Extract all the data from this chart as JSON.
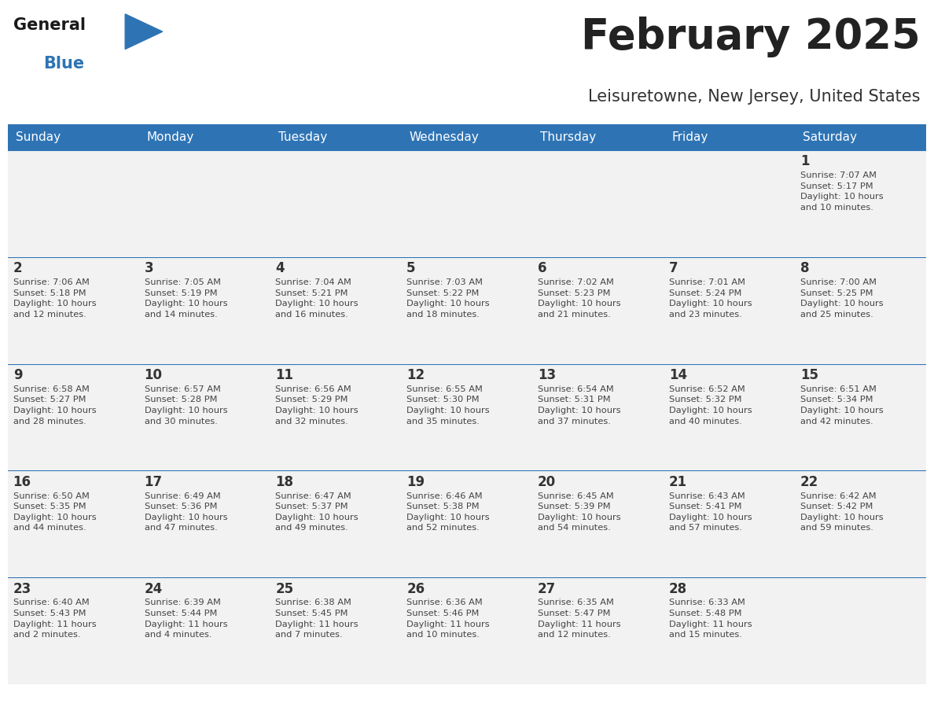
{
  "title": "February 2025",
  "subtitle": "Leisuretowne, New Jersey, United States",
  "days_of_week": [
    "Sunday",
    "Monday",
    "Tuesday",
    "Wednesday",
    "Thursday",
    "Friday",
    "Saturday"
  ],
  "header_bg": "#2E74B5",
  "header_text": "#FFFFFF",
  "row_bg_light": "#F2F2F2",
  "cell_border": "#2E74B5",
  "day_number_color": "#333333",
  "day_info_color": "#444444",
  "title_color": "#222222",
  "subtitle_color": "#333333",
  "logo_general_color": "#1a1a1a",
  "logo_blue_color": "#2E74B5",
  "calendar_data": [
    [
      {
        "day": null,
        "info": null
      },
      {
        "day": null,
        "info": null
      },
      {
        "day": null,
        "info": null
      },
      {
        "day": null,
        "info": null
      },
      {
        "day": null,
        "info": null
      },
      {
        "day": null,
        "info": null
      },
      {
        "day": 1,
        "info": "Sunrise: 7:07 AM\nSunset: 5:17 PM\nDaylight: 10 hours\nand 10 minutes."
      }
    ],
    [
      {
        "day": 2,
        "info": "Sunrise: 7:06 AM\nSunset: 5:18 PM\nDaylight: 10 hours\nand 12 minutes."
      },
      {
        "day": 3,
        "info": "Sunrise: 7:05 AM\nSunset: 5:19 PM\nDaylight: 10 hours\nand 14 minutes."
      },
      {
        "day": 4,
        "info": "Sunrise: 7:04 AM\nSunset: 5:21 PM\nDaylight: 10 hours\nand 16 minutes."
      },
      {
        "day": 5,
        "info": "Sunrise: 7:03 AM\nSunset: 5:22 PM\nDaylight: 10 hours\nand 18 minutes."
      },
      {
        "day": 6,
        "info": "Sunrise: 7:02 AM\nSunset: 5:23 PM\nDaylight: 10 hours\nand 21 minutes."
      },
      {
        "day": 7,
        "info": "Sunrise: 7:01 AM\nSunset: 5:24 PM\nDaylight: 10 hours\nand 23 minutes."
      },
      {
        "day": 8,
        "info": "Sunrise: 7:00 AM\nSunset: 5:25 PM\nDaylight: 10 hours\nand 25 minutes."
      }
    ],
    [
      {
        "day": 9,
        "info": "Sunrise: 6:58 AM\nSunset: 5:27 PM\nDaylight: 10 hours\nand 28 minutes."
      },
      {
        "day": 10,
        "info": "Sunrise: 6:57 AM\nSunset: 5:28 PM\nDaylight: 10 hours\nand 30 minutes."
      },
      {
        "day": 11,
        "info": "Sunrise: 6:56 AM\nSunset: 5:29 PM\nDaylight: 10 hours\nand 32 minutes."
      },
      {
        "day": 12,
        "info": "Sunrise: 6:55 AM\nSunset: 5:30 PM\nDaylight: 10 hours\nand 35 minutes."
      },
      {
        "day": 13,
        "info": "Sunrise: 6:54 AM\nSunset: 5:31 PM\nDaylight: 10 hours\nand 37 minutes."
      },
      {
        "day": 14,
        "info": "Sunrise: 6:52 AM\nSunset: 5:32 PM\nDaylight: 10 hours\nand 40 minutes."
      },
      {
        "day": 15,
        "info": "Sunrise: 6:51 AM\nSunset: 5:34 PM\nDaylight: 10 hours\nand 42 minutes."
      }
    ],
    [
      {
        "day": 16,
        "info": "Sunrise: 6:50 AM\nSunset: 5:35 PM\nDaylight: 10 hours\nand 44 minutes."
      },
      {
        "day": 17,
        "info": "Sunrise: 6:49 AM\nSunset: 5:36 PM\nDaylight: 10 hours\nand 47 minutes."
      },
      {
        "day": 18,
        "info": "Sunrise: 6:47 AM\nSunset: 5:37 PM\nDaylight: 10 hours\nand 49 minutes."
      },
      {
        "day": 19,
        "info": "Sunrise: 6:46 AM\nSunset: 5:38 PM\nDaylight: 10 hours\nand 52 minutes."
      },
      {
        "day": 20,
        "info": "Sunrise: 6:45 AM\nSunset: 5:39 PM\nDaylight: 10 hours\nand 54 minutes."
      },
      {
        "day": 21,
        "info": "Sunrise: 6:43 AM\nSunset: 5:41 PM\nDaylight: 10 hours\nand 57 minutes."
      },
      {
        "day": 22,
        "info": "Sunrise: 6:42 AM\nSunset: 5:42 PM\nDaylight: 10 hours\nand 59 minutes."
      }
    ],
    [
      {
        "day": 23,
        "info": "Sunrise: 6:40 AM\nSunset: 5:43 PM\nDaylight: 11 hours\nand 2 minutes."
      },
      {
        "day": 24,
        "info": "Sunrise: 6:39 AM\nSunset: 5:44 PM\nDaylight: 11 hours\nand 4 minutes."
      },
      {
        "day": 25,
        "info": "Sunrise: 6:38 AM\nSunset: 5:45 PM\nDaylight: 11 hours\nand 7 minutes."
      },
      {
        "day": 26,
        "info": "Sunrise: 6:36 AM\nSunset: 5:46 PM\nDaylight: 11 hours\nand 10 minutes."
      },
      {
        "day": 27,
        "info": "Sunrise: 6:35 AM\nSunset: 5:47 PM\nDaylight: 11 hours\nand 12 minutes."
      },
      {
        "day": 28,
        "info": "Sunrise: 6:33 AM\nSunset: 5:48 PM\nDaylight: 11 hours\nand 15 minutes."
      },
      {
        "day": null,
        "info": null
      }
    ]
  ],
  "fig_width": 11.88,
  "fig_height": 9.18,
  "dpi": 100
}
